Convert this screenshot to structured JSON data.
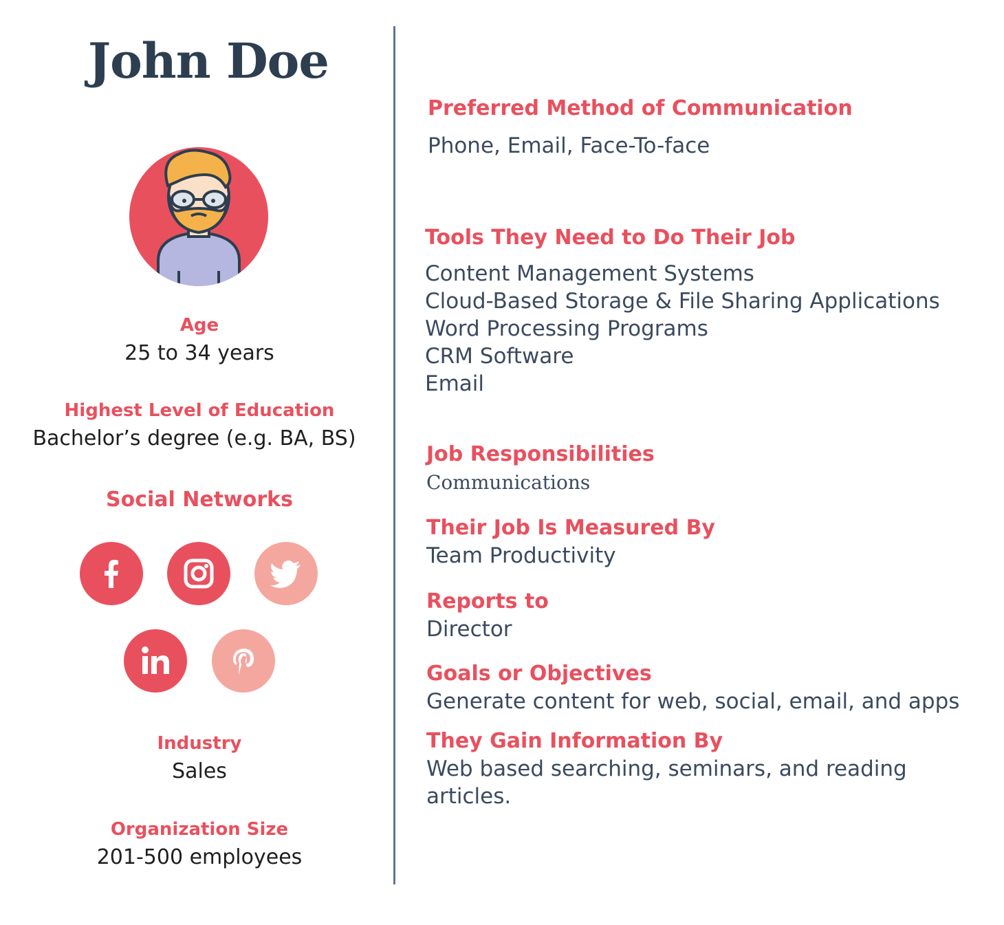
{
  "name": "John Doe",
  "left": {
    "age_label": "Age",
    "age_value": "25 to 34 years",
    "education_label": "Highest Level of Education",
    "education_value": "Bachelor’s degree (e.g. BA, BS)",
    "social_label": "Social Networks",
    "social": [
      {
        "icon": "facebook-icon",
        "color": "#e9505e"
      },
      {
        "icon": "instagram-icon",
        "color": "#e9505e"
      },
      {
        "icon": "twitter-icon",
        "color": "#f4a79f"
      },
      {
        "icon": "linkedin-icon",
        "color": "#e9505e"
      },
      {
        "icon": "pinterest-icon",
        "color": "#f4a79f"
      }
    ],
    "industry_label": "Industry",
    "industry_value": "Sales",
    "org_label": "Organization Size",
    "org_value": "201-500 employees"
  },
  "right": {
    "communication_label": "Preferred Method of Communication",
    "communication_value": "Phone, Email, Face-To-face",
    "tools_label": "Tools They Need to Do Their Job",
    "tools": [
      "Content Management Systems",
      "Cloud-Based Storage & File Sharing Applications",
      "Word Processing Programs",
      "CRM Software",
      "Email"
    ],
    "responsibilities_label": "Job Responsibilities",
    "responsibilities_value": "Communications",
    "measured_label": "Their Job Is Measured By",
    "measured_value": "Team Productivity",
    "reports_label": "Reports to",
    "reports_value": "Director",
    "goals_label": "Goals or Objectives",
    "goals_value": "Generate content for web, social, email, and apps",
    "info_label": "They Gain Information By",
    "info_value": "Web based searching, seminars, and reading articles."
  },
  "colors": {
    "accent": "#e9505e",
    "accent_light": "#f4a79f",
    "name": "#2d3e50",
    "divider": "#5d7391"
  }
}
